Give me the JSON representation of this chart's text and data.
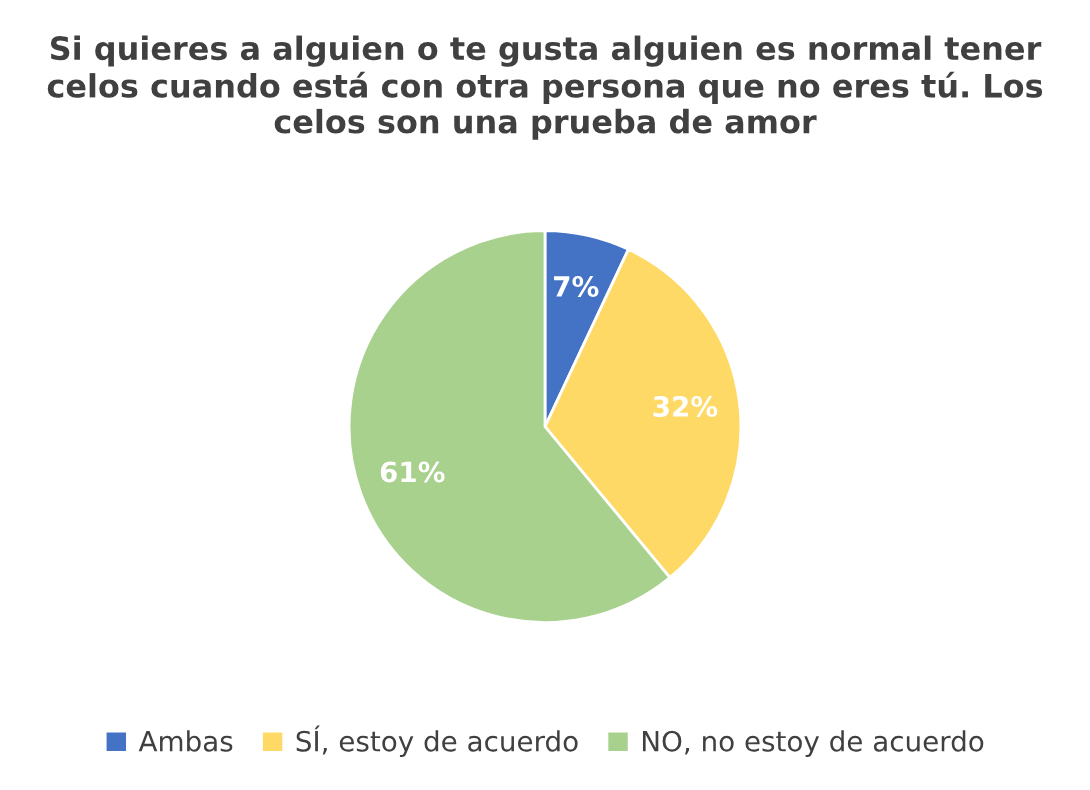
{
  "chart_data": {
    "type": "pie",
    "title": "Si quieres a alguien o te gusta alguien es normal tener celos cuando está con otra persona que no eres tú. Los celos son una prueba de amor",
    "categories": [
      "Ambas",
      "SÍ, estoy de acuerdo",
      "NO, no estoy de acuerdo"
    ],
    "values": [
      7,
      32,
      61
    ],
    "colors": [
      "#4472c4",
      "#ffd966",
      "#a9d18e"
    ],
    "value_labels": [
      "7%",
      "32%",
      "61%"
    ],
    "legend": "bottom"
  }
}
